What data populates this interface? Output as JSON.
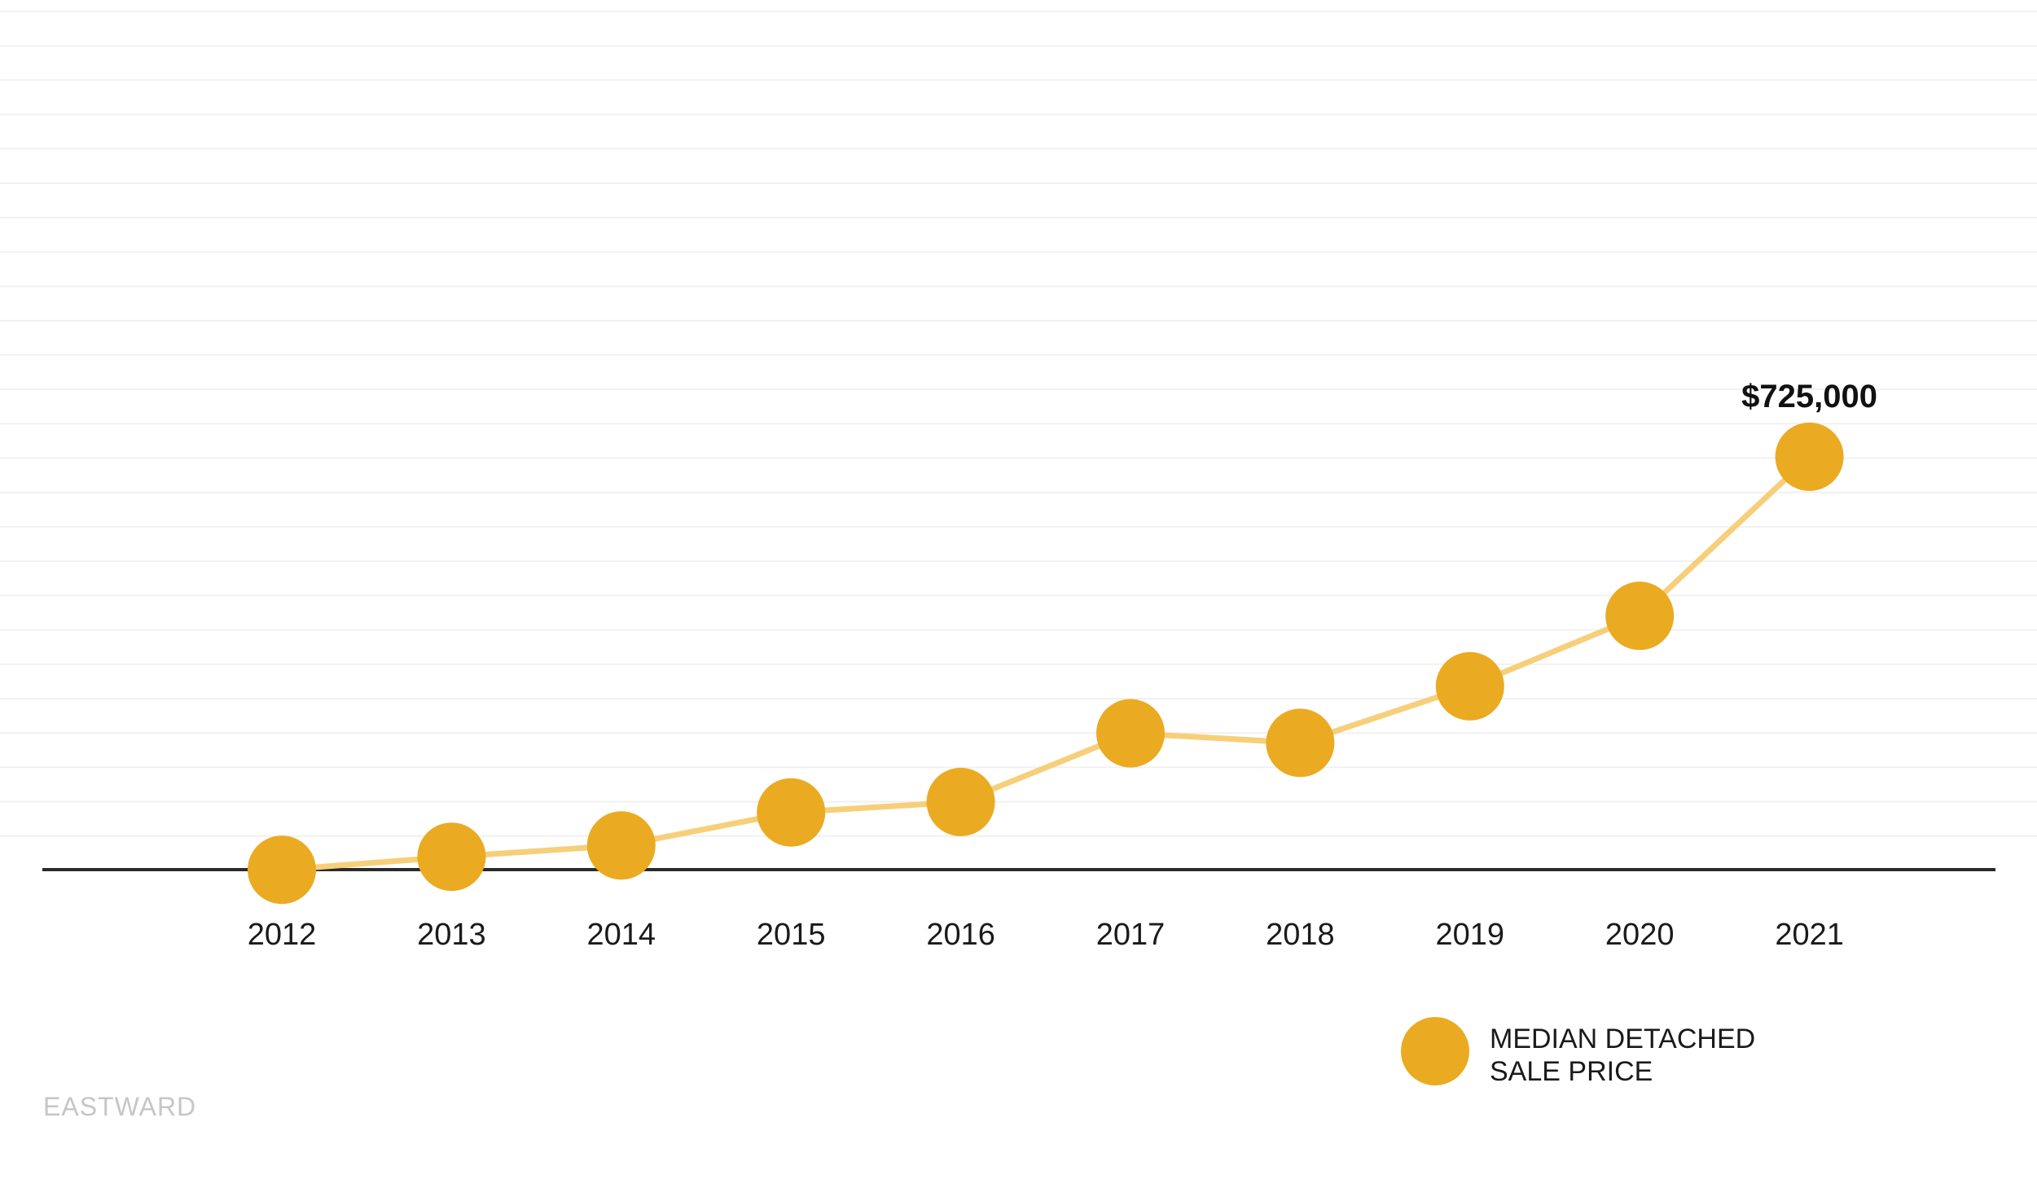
{
  "chart_data": {
    "type": "line",
    "x": [
      "2012",
      "2013",
      "2014",
      "2015",
      "2016",
      "2017",
      "2018",
      "2019",
      "2020",
      "2021"
    ],
    "series": [
      {
        "name": "MEDIAN DETACHED SALE PRICE",
        "values": [
          250000,
          265000,
          278000,
          316000,
          328000,
          407000,
          396000,
          461000,
          542000,
          725000
        ]
      }
    ],
    "annotations": [
      {
        "x": "2021",
        "text": "$725,000"
      }
    ],
    "ylim": [
      0,
      1000000
    ],
    "grid": true,
    "legend": "bottom-right",
    "colors": {
      "marker": "#EAAB22",
      "line": "#F7CF7A",
      "axis": "#2b2b2b",
      "grid": "#f1f1f1"
    }
  },
  "legend": {
    "lines": [
      "MEDIAN DETACHED",
      "SALE PRICE"
    ]
  },
  "watermark": "EASTWARD"
}
